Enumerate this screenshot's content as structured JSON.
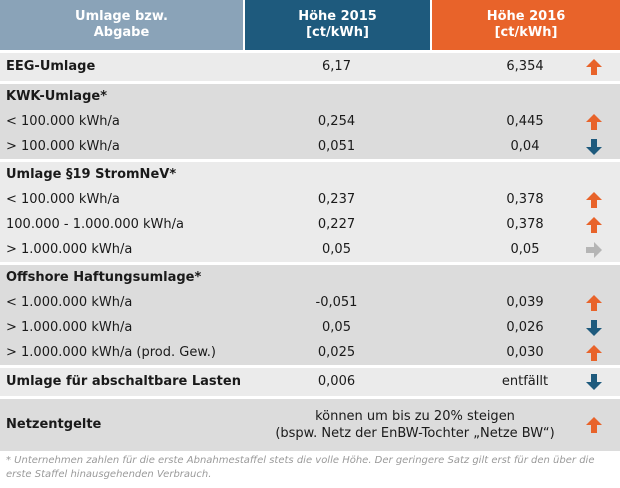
{
  "header": {
    "col0_line1": "Umlage bzw.",
    "col0_line2": "Abgabe",
    "col1_line1": "Höhe 2015",
    "col1_line2": "[ct/kWh]",
    "col2_line1": "Höhe 2016",
    "col2_line2": "[ct/kWh]"
  },
  "rows": {
    "eeg": {
      "label": "EEG-Umlage",
      "v2015": "6,17",
      "v2016": "6,354",
      "trend": "up-arrow-icon"
    },
    "kwk": {
      "title": "KWK-Umlage*",
      "r1": {
        "label": "< 100.000 kWh/a",
        "v2015": "0,254",
        "v2016": "0,445",
        "trend": "up-arrow-icon"
      },
      "r2": {
        "label": "> 100.000 kWh/a",
        "v2015": "0,051",
        "v2016": "0,04",
        "trend": "down-arrow-icon"
      }
    },
    "stromnev": {
      "title": "Umlage §19 StromNeV*",
      "r1": {
        "label": "< 100.000 kWh/a",
        "v2015": "0,237",
        "v2016": "0,378",
        "trend": "up-arrow-icon"
      },
      "r2": {
        "label": "100.000 - 1.000.000 kWh/a",
        "v2015": "0,227",
        "v2016": "0,378",
        "trend": "up-arrow-icon"
      },
      "r3": {
        "label": "> 1.000.000 kWh/a",
        "v2015": "0,05",
        "v2016": "0,05",
        "trend": "right-arrow-icon"
      }
    },
    "offshore": {
      "title": "Offshore Haftungsumlage*",
      "r1": {
        "label": "< 1.000.000 kWh/a",
        "v2015": "-0,051",
        "v2016": "0,039",
        "trend": "up-arrow-icon"
      },
      "r2": {
        "label": "> 1.000.000 kWh/a",
        "v2015": "0,05",
        "v2016": "0,026",
        "trend": "down-arrow-icon"
      },
      "r3": {
        "label": "> 1.000.000 kWh/a (prod. Gew.)",
        "v2015": "0,025",
        "v2016": "0,030",
        "trend": "up-arrow-icon"
      }
    },
    "abschaltbar": {
      "label": "Umlage für abschaltbare Lasten",
      "v2015": "0,006",
      "v2016": "entfällt",
      "trend": "down-arrow-icon"
    },
    "netz": {
      "label": "Netzentgelte",
      "text_line1": "können um bis zu 20% steigen",
      "text_line2": "(bspw. Netz der EnBW-Tochter „Netze BW“)",
      "trend": "up-arrow-icon"
    }
  },
  "footnote": "* Unternehmen zahlen für die erste Abnahmestaffel stets die volle Höhe. Der geringere Satz gilt erst für den über die erste Staffel hinausgehenden Verbrauch.",
  "colors": {
    "up": "#e8632a",
    "down": "#1e5a7d",
    "flat": "#b5b5b5",
    "hdr2015": "#1e5a7d",
    "hdr2016": "#e8632a",
    "hdrLabel": "#8aa3b8"
  }
}
